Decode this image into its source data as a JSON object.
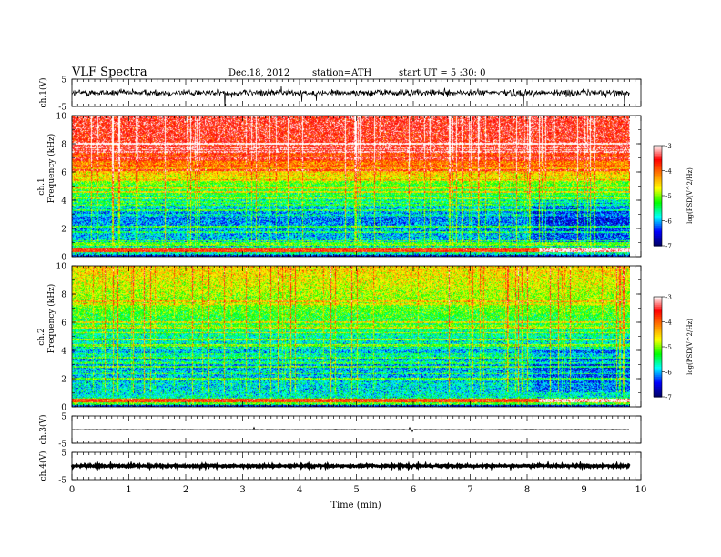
{
  "header": {
    "title": "VLF Spectra",
    "date": "Dec.18, 2012",
    "station": "station=ATH",
    "start": "start UT = 5 :30: 0"
  },
  "chart_data": [
    {
      "type": "line",
      "panel": "ch1-waveform",
      "ylabel": "ch.1(V)",
      "yticks": [
        "5",
        "-5"
      ],
      "ylim": [
        -5,
        5
      ],
      "xlim": [
        0,
        10
      ],
      "data_end": 9.8,
      "level": 0.0,
      "noise": "large"
    },
    {
      "type": "heatmap",
      "panel": "ch1-spectrogram",
      "ylabel": [
        "ch.1",
        "Frequency (kHz)"
      ],
      "yticks": [
        "10",
        "8",
        "6",
        "4",
        "2",
        "0"
      ],
      "ylim": [
        0,
        10
      ],
      "xlim": [
        0,
        10
      ],
      "data_end": 9.8,
      "colorbar": {
        "label": "log(PSD(V^2/Hz)",
        "ticks": [
          "-3",
          "-4",
          "-5",
          "-6",
          "-7"
        ],
        "range": [
          -7,
          -3
        ]
      }
    },
    {
      "type": "heatmap",
      "panel": "ch2-spectrogram",
      "ylabel": [
        "ch.2",
        "Frequency (kHz)"
      ],
      "yticks": [
        "10",
        "8",
        "6",
        "4",
        "2",
        "0"
      ],
      "ylim": [
        0,
        10
      ],
      "xlim": [
        0,
        10
      ],
      "data_end": 9.8,
      "colorbar": {
        "label": "log(PSD(V^2/Hz)",
        "ticks": [
          "-3",
          "-4",
          "-5",
          "-6",
          "-7"
        ],
        "range": [
          -7,
          -3
        ]
      }
    },
    {
      "type": "line",
      "panel": "ch3-waveform",
      "ylabel": "ch.3(V)",
      "yticks": [
        "5",
        "-5"
      ],
      "ylim": [
        -5,
        5
      ],
      "xlim": [
        0,
        10
      ],
      "data_end": 9.8,
      "level": 0.0,
      "noise": "small"
    },
    {
      "type": "line",
      "panel": "ch4-waveform",
      "ylabel": "ch.4(V)",
      "yticks": [
        "5",
        "-5"
      ],
      "ylim": [
        -5,
        5
      ],
      "xlim": [
        0,
        10
      ],
      "data_end": 9.8,
      "level": 0.0,
      "noise": "thick"
    }
  ],
  "xaxis": {
    "label": "Time (min)",
    "ticks": [
      "0",
      "1",
      "2",
      "3",
      "4",
      "5",
      "6",
      "7",
      "8",
      "9",
      "10"
    ]
  },
  "colors": {
    "colormap": [
      "#000066",
      "#0000ff",
      "#00ffff",
      "#00ff00",
      "#ffff00",
      "#ff8000",
      "#ff0000",
      "#ffffff"
    ]
  }
}
